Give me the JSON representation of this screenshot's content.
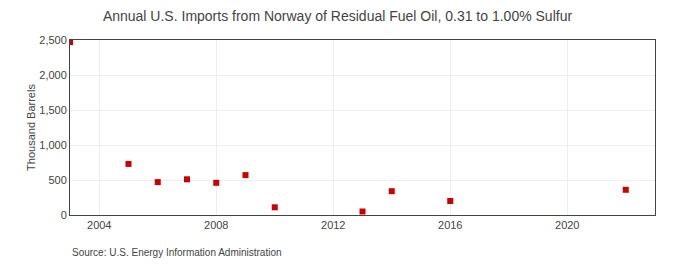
{
  "chart_data": {
    "type": "scatter",
    "title": "Annual U.S. Imports from Norway of Residual Fuel Oil, 0.31 to 1.00% Sulfur",
    "y_label": "Thousand Barrels",
    "annotations": [
      "Source: U.S. Energy Information Administration"
    ],
    "x": [
      2003,
      2005,
      2006,
      2007,
      2008,
      2009,
      2010,
      2013,
      2014,
      2016,
      2022
    ],
    "values": [
      2470,
      730,
      470,
      510,
      460,
      570,
      110,
      50,
      340,
      200,
      360
    ],
    "color": "#cc0000",
    "marker": "square",
    "xlim": [
      2003.0,
      2023.0
    ],
    "xticks": [
      2004,
      2008,
      2012,
      2016,
      2020
    ],
    "ylim": [
      0,
      2500
    ],
    "yticks": [
      0,
      500,
      {
        "value": 1000,
        "label": "1,000"
      },
      {
        "value": 1500,
        "label": "1,500"
      },
      {
        "value": 2000,
        "label": "2,000"
      },
      {
        "value": 2500,
        "label": "2,500"
      }
    ],
    "grid": true
  }
}
